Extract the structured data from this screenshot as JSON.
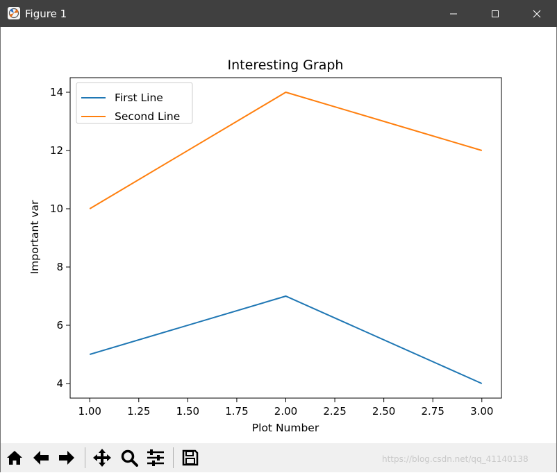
{
  "window": {
    "title": "Figure 1",
    "controls": [
      "minimize-icon",
      "maximize-icon",
      "close-icon"
    ]
  },
  "toolbar": {
    "buttons": [
      {
        "name": "home",
        "icon": "home-icon"
      },
      {
        "name": "back",
        "icon": "arrow-left-icon"
      },
      {
        "name": "forward",
        "icon": "arrow-right-icon"
      },
      {
        "name": "pan",
        "icon": "move-icon"
      },
      {
        "name": "zoom",
        "icon": "magnifier-icon"
      },
      {
        "name": "configure-subplots",
        "icon": "sliders-icon"
      },
      {
        "name": "save",
        "icon": "floppy-disk-icon"
      }
    ]
  },
  "watermark": "https://blog.csdn.net/qq_41140138",
  "colors": {
    "titlebar": "#404040",
    "series_1": "#1f77b4",
    "series_2": "#ff7f0e"
  },
  "chart_data": {
    "type": "line",
    "title": "Interesting Graph",
    "xlabel": "Plot Number",
    "ylabel": "Important var",
    "xlim": [
      0.9,
      3.1
    ],
    "ylim": [
      3.5,
      14.5
    ],
    "xticks": [
      1.0,
      1.25,
      1.5,
      1.75,
      2.0,
      2.25,
      2.5,
      2.75,
      3.0
    ],
    "xtick_labels": [
      "1.00",
      "1.25",
      "1.50",
      "1.75",
      "2.00",
      "2.25",
      "2.50",
      "2.75",
      "3.00"
    ],
    "yticks": [
      4,
      6,
      8,
      10,
      12,
      14
    ],
    "ytick_labels": [
      "4",
      "6",
      "8",
      "10",
      "12",
      "14"
    ],
    "grid": false,
    "legend_position": "upper-left",
    "x": [
      1,
      2,
      3
    ],
    "series": [
      {
        "name": "First Line",
        "values": [
          5,
          7,
          4
        ],
        "color": "#1f77b4"
      },
      {
        "name": "Second Line",
        "values": [
          10,
          14,
          12
        ],
        "color": "#ff7f0e"
      }
    ]
  }
}
